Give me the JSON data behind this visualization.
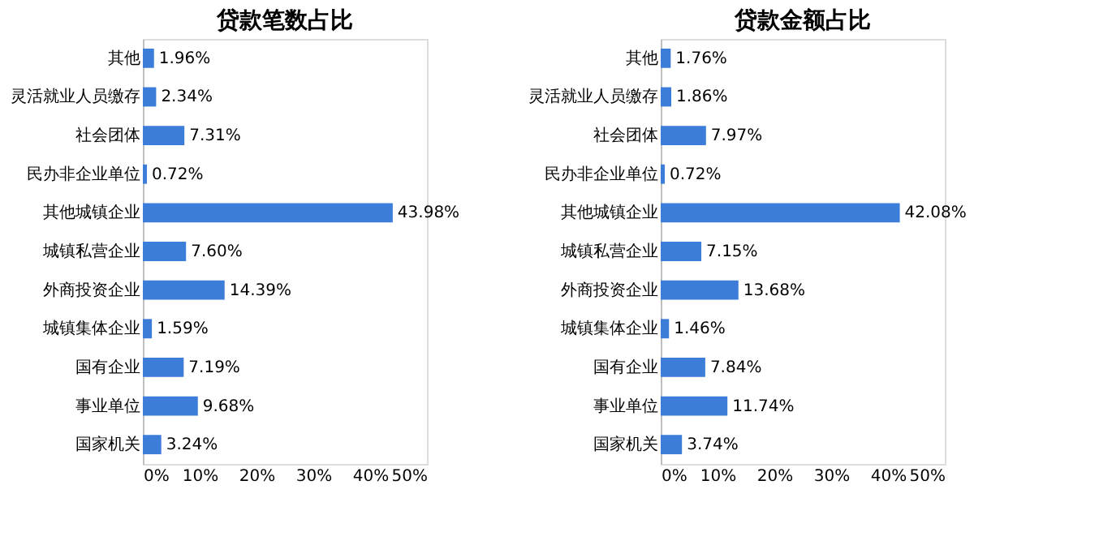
{
  "chart_data": [
    {
      "type": "bar",
      "orientation": "horizontal",
      "title": "贷款笔数占比",
      "categories": [
        "其他",
        "灵活就业人员缴存",
        "社会团体",
        "民办非企业单位",
        "其他城镇企业",
        "城镇私营企业",
        "外商投资企业",
        "城镇集体企业",
        "国有企业",
        "事业单位",
        "国家机关"
      ],
      "values": [
        1.96,
        2.34,
        7.31,
        0.72,
        43.98,
        7.6,
        14.39,
        1.59,
        7.19,
        9.68,
        3.24
      ],
      "value_labels": [
        "1.96%",
        "2.34%",
        "7.31%",
        "0.72%",
        "43.98%",
        "7.60%",
        "14.39%",
        "1.59%",
        "7.19%",
        "9.68%",
        "3.24%"
      ],
      "color": "#3b7dd8",
      "xlim": [
        0,
        50
      ],
      "xticks": [
        {
          "value": 0,
          "label": "0%"
        },
        {
          "value": 10,
          "label": "10%"
        },
        {
          "value": 20,
          "label": "20%"
        },
        {
          "value": 30,
          "label": "30%"
        },
        {
          "value": 40,
          "label": "40%"
        },
        {
          "value": 50,
          "label": "50%"
        }
      ],
      "grid": false
    },
    {
      "type": "bar",
      "orientation": "horizontal",
      "title": "贷款金额占比",
      "categories": [
        "其他",
        "灵活就业人员缴存",
        "社会团体",
        "民办非企业单位",
        "其他城镇企业",
        "城镇私营企业",
        "外商投资企业",
        "城镇集体企业",
        "国有企业",
        "事业单位",
        "国家机关"
      ],
      "values": [
        1.76,
        1.86,
        7.97,
        0.72,
        42.08,
        7.15,
        13.68,
        1.46,
        7.84,
        11.74,
        3.74
      ],
      "value_labels": [
        "1.76%",
        "1.86%",
        "7.97%",
        "0.72%",
        "42.08%",
        "7.15%",
        "13.68%",
        "1.46%",
        "7.84%",
        "11.74%",
        "3.74%"
      ],
      "color": "#3b7dd8",
      "xlim": [
        0,
        50
      ],
      "xticks": [
        {
          "value": 0,
          "label": "0%"
        },
        {
          "value": 10,
          "label": "10%"
        },
        {
          "value": 20,
          "label": "20%"
        },
        {
          "value": 30,
          "label": "30%"
        },
        {
          "value": 40,
          "label": "40%"
        },
        {
          "value": 50,
          "label": "50%"
        }
      ],
      "grid": false
    }
  ]
}
